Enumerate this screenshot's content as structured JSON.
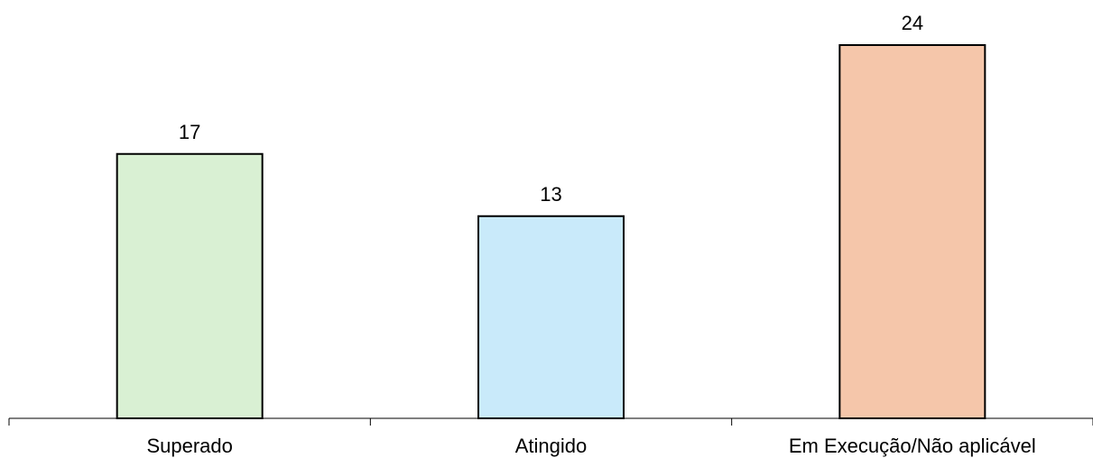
{
  "chart_data": {
    "type": "bar",
    "title": "",
    "xlabel": "",
    "ylabel": "",
    "categories": [
      "Superado",
      "Atingido",
      "Em Execução/Não aplicável"
    ],
    "values": [
      17,
      13,
      24
    ],
    "data_labels": [
      "17",
      "13",
      "24"
    ],
    "ylim": [
      0,
      24
    ],
    "colors": [
      "#d9f0d3",
      "#c9eafa",
      "#f5c6aa"
    ],
    "bar_border": "#000000",
    "grid": false,
    "legend": "none"
  }
}
